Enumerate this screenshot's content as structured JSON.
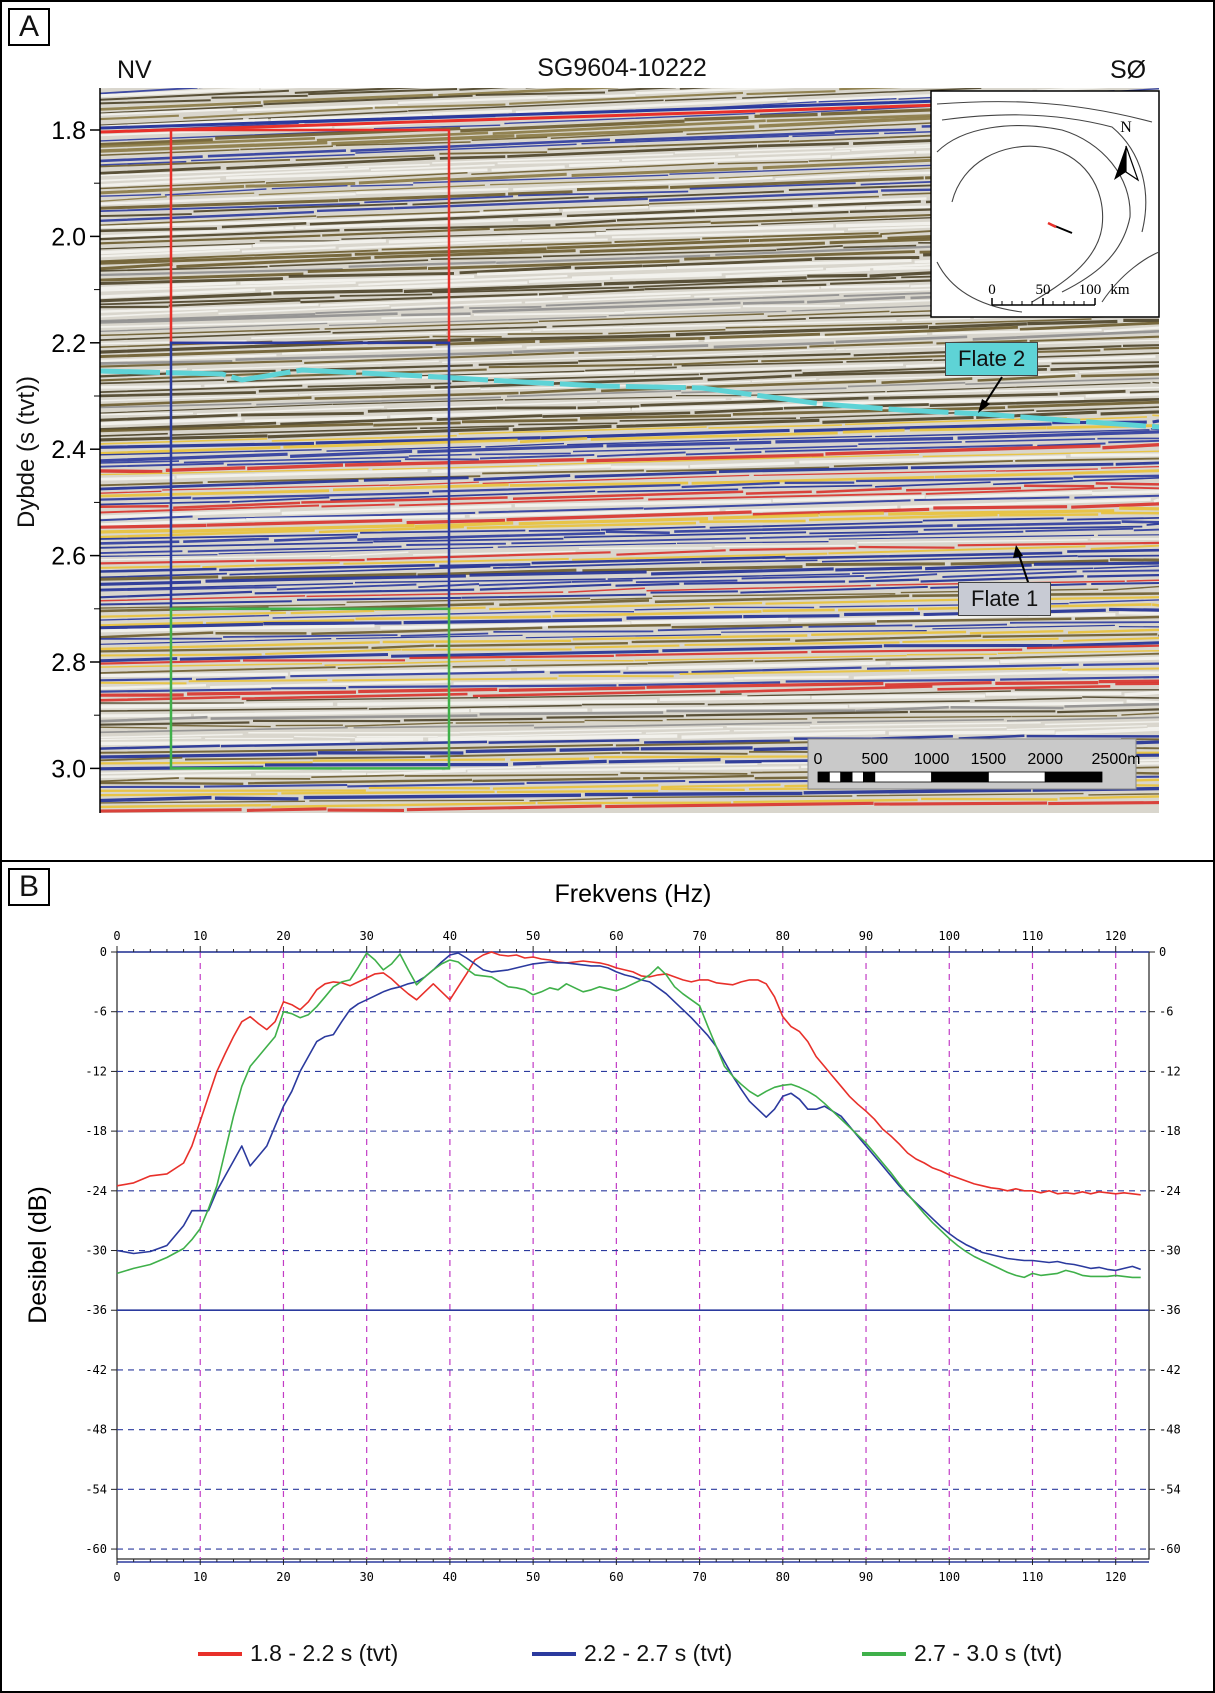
{
  "panel_a": {
    "letter": "A",
    "title": "SG9604-10222",
    "left_label": "NV",
    "right_label": "SØ",
    "ylabel": "Dybde (s (tvt))",
    "yticks": [
      "1.8",
      "2.0",
      "2.2",
      "2.4",
      "2.6",
      "2.8",
      "3.0"
    ],
    "boxes": [
      {
        "name": "red-window",
        "color": "#e8302a",
        "range": [
          1.8,
          2.2
        ]
      },
      {
        "name": "blue-window",
        "color": "#2b3a9e",
        "range": [
          2.2,
          2.7
        ]
      },
      {
        "name": "green-window",
        "color": "#3fb04a",
        "range": [
          2.7,
          3.0
        ]
      }
    ],
    "annotations": {
      "flate2": {
        "text": "Flate 2",
        "bg": "#5ed3d6"
      },
      "flate1": {
        "text": "Flate 1",
        "bg": "#c8cbd4"
      }
    },
    "inset_map": {
      "north": "N",
      "scale_ticks": [
        "0",
        "50",
        "100"
      ],
      "scale_unit": "km"
    },
    "scalebar": {
      "ticks": [
        "0",
        "500",
        "1000",
        "1500",
        "2000",
        "2500m"
      ]
    }
  },
  "panel_b": {
    "letter": "B"
  },
  "chart_data": {
    "type": "line",
    "xlabel": "Frekvens (Hz)",
    "ylabel": "Desibel (dB)",
    "xlim": [
      0,
      124
    ],
    "ylim": [
      -61,
      0
    ],
    "xticks": [
      0,
      10,
      20,
      30,
      40,
      50,
      60,
      70,
      80,
      90,
      100,
      110,
      120
    ],
    "yticks": [
      0,
      -6,
      -12,
      -18,
      -24,
      -30,
      -36,
      -42,
      -48,
      -54,
      -60
    ],
    "grid": true,
    "legend_position": "bottom",
    "series": [
      {
        "name": "1.8 - 2.2 s (tvt)",
        "color": "#e8302a",
        "x": [
          0,
          2,
          4,
          6,
          8,
          9,
          10,
          11,
          12,
          13,
          14,
          15,
          16,
          17,
          18,
          19,
          20,
          21,
          22,
          23,
          24,
          25,
          26,
          27,
          28,
          29,
          30,
          31,
          32,
          33,
          34,
          35,
          36,
          37,
          38,
          39,
          40,
          41,
          42,
          43,
          44,
          45,
          46,
          47,
          48,
          49,
          50,
          51,
          52,
          53,
          54,
          55,
          56,
          57,
          58,
          59,
          60,
          61,
          62,
          63,
          64,
          65,
          66,
          67,
          68,
          69,
          70,
          71,
          72,
          73,
          74,
          75,
          76,
          77,
          78,
          79,
          80,
          81,
          82,
          83,
          84,
          85,
          86,
          87,
          88,
          89,
          90,
          91,
          92,
          93,
          94,
          95,
          96,
          97,
          98,
          99,
          100,
          101,
          102,
          103,
          104,
          105,
          106,
          107,
          108,
          109,
          110,
          111,
          112,
          113,
          114,
          115,
          116,
          117,
          118,
          119,
          120,
          121,
          122,
          123
        ],
        "y": [
          -23.5,
          -23.2,
          -22.5,
          -22.3,
          -21.2,
          -19.5,
          -17.0,
          -14.5,
          -12.0,
          -10.2,
          -8.5,
          -7.0,
          -6.5,
          -7.2,
          -7.8,
          -7.0,
          -5.0,
          -5.3,
          -5.8,
          -5.0,
          -3.8,
          -3.2,
          -3.0,
          -3.1,
          -3.4,
          -3.0,
          -2.6,
          -2.2,
          -2.1,
          -2.7,
          -3.5,
          -4.2,
          -4.8,
          -4.0,
          -3.2,
          -4.0,
          -4.8,
          -3.5,
          -2.2,
          -0.8,
          -0.3,
          0.0,
          -0.3,
          -0.4,
          -0.3,
          -0.6,
          -0.5,
          -0.7,
          -0.8,
          -1.0,
          -1.1,
          -1.0,
          -0.9,
          -1.0,
          -1.1,
          -1.3,
          -1.6,
          -1.8,
          -2.0,
          -2.4,
          -2.5,
          -2.3,
          -2.2,
          -2.5,
          -2.8,
          -3.0,
          -2.8,
          -2.8,
          -3.1,
          -3.2,
          -3.3,
          -3.0,
          -2.8,
          -2.8,
          -3.2,
          -4.5,
          -6.5,
          -7.5,
          -8.0,
          -9.0,
          -10.5,
          -11.5,
          -12.5,
          -13.5,
          -14.5,
          -15.3,
          -16.0,
          -16.8,
          -17.8,
          -18.5,
          -19.3,
          -20.2,
          -20.8,
          -21.2,
          -21.7,
          -22.0,
          -22.4,
          -22.7,
          -23.0,
          -23.3,
          -23.5,
          -23.7,
          -23.8,
          -24.0,
          -23.8,
          -24.0,
          -24.0,
          -24.2,
          -24.0,
          -24.3,
          -24.2,
          -24.3,
          -24.1,
          -24.3,
          -24.1,
          -24.2,
          -24.3,
          -24.2,
          -24.3,
          -24.4
        ]
      },
      {
        "name": "2.2 - 2.7 s (tvt)",
        "color": "#2b3a9e",
        "x": [
          0,
          2,
          4,
          6,
          8,
          9,
          10,
          11,
          12,
          13,
          14,
          15,
          16,
          17,
          18,
          19,
          20,
          21,
          22,
          23,
          24,
          25,
          26,
          27,
          28,
          29,
          30,
          31,
          32,
          33,
          34,
          35,
          36,
          37,
          38,
          39,
          40,
          41,
          42,
          43,
          44,
          45,
          46,
          47,
          48,
          49,
          50,
          51,
          52,
          53,
          54,
          55,
          56,
          57,
          58,
          59,
          60,
          61,
          62,
          63,
          64,
          65,
          66,
          67,
          68,
          69,
          70,
          71,
          72,
          73,
          74,
          75,
          76,
          77,
          78,
          79,
          80,
          81,
          82,
          83,
          84,
          85,
          86,
          87,
          88,
          89,
          90,
          91,
          92,
          93,
          94,
          95,
          96,
          97,
          98,
          99,
          100,
          101,
          102,
          103,
          104,
          105,
          106,
          107,
          108,
          109,
          110,
          111,
          112,
          113,
          114,
          115,
          116,
          117,
          118,
          119,
          120,
          121,
          122,
          123
        ],
        "y": [
          -30.0,
          -30.3,
          -30.1,
          -29.5,
          -27.5,
          -26.0,
          -26.0,
          -26.0,
          -24.0,
          -22.5,
          -21.0,
          -19.5,
          -21.5,
          -20.5,
          -19.5,
          -17.5,
          -15.5,
          -14.0,
          -12.0,
          -10.5,
          -9.0,
          -8.5,
          -8.3,
          -7.0,
          -5.8,
          -5.2,
          -4.8,
          -4.4,
          -4.0,
          -3.7,
          -3.5,
          -3.2,
          -3.0,
          -2.5,
          -1.8,
          -1.0,
          -0.3,
          -0.1,
          -0.6,
          -1.2,
          -1.8,
          -2.0,
          -1.9,
          -1.8,
          -1.6,
          -1.4,
          -1.2,
          -1.1,
          -1.0,
          -1.1,
          -1.1,
          -1.2,
          -1.3,
          -1.4,
          -1.4,
          -1.6,
          -2.0,
          -2.3,
          -2.5,
          -2.8,
          -3.0,
          -3.6,
          -4.2,
          -5.0,
          -5.8,
          -6.6,
          -7.5,
          -8.4,
          -9.5,
          -11.0,
          -12.5,
          -13.8,
          -15.0,
          -15.8,
          -16.6,
          -15.8,
          -14.5,
          -14.2,
          -14.8,
          -15.8,
          -15.8,
          -15.5,
          -16.0,
          -16.5,
          -17.5,
          -18.5,
          -19.5,
          -20.5,
          -21.5,
          -22.5,
          -23.5,
          -24.4,
          -25.2,
          -26.0,
          -26.8,
          -27.6,
          -28.3,
          -28.9,
          -29.4,
          -29.8,
          -30.2,
          -30.4,
          -30.6,
          -30.8,
          -30.9,
          -31.0,
          -31.0,
          -31.1,
          -31.2,
          -31.1,
          -31.3,
          -31.4,
          -31.6,
          -31.8,
          -31.7,
          -31.9,
          -32.0,
          -31.8,
          -31.6,
          -31.9
        ]
      },
      {
        "name": "2.7 - 3.0 s (tvt)",
        "color": "#3fb04a",
        "x": [
          0,
          2,
          4,
          6,
          8,
          9,
          10,
          11,
          12,
          13,
          14,
          15,
          16,
          17,
          18,
          19,
          20,
          21,
          22,
          23,
          24,
          25,
          26,
          27,
          28,
          29,
          30,
          31,
          32,
          33,
          34,
          35,
          36,
          37,
          38,
          39,
          40,
          41,
          42,
          43,
          44,
          45,
          46,
          47,
          48,
          49,
          50,
          51,
          52,
          53,
          54,
          55,
          56,
          57,
          58,
          59,
          60,
          61,
          62,
          63,
          64,
          65,
          66,
          67,
          68,
          69,
          70,
          71,
          72,
          73,
          74,
          75,
          76,
          77,
          78,
          79,
          80,
          81,
          82,
          83,
          84,
          85,
          86,
          87,
          88,
          89,
          90,
          91,
          92,
          93,
          94,
          95,
          96,
          97,
          98,
          99,
          100,
          101,
          102,
          103,
          104,
          105,
          106,
          107,
          108,
          109,
          110,
          111,
          112,
          113,
          114,
          115,
          116,
          117,
          118,
          119,
          120,
          121,
          122,
          123
        ],
        "y": [
          -32.3,
          -31.8,
          -31.4,
          -30.7,
          -29.8,
          -28.9,
          -27.8,
          -25.8,
          -23.5,
          -20.0,
          -16.5,
          -13.5,
          -11.5,
          -10.5,
          -9.5,
          -8.5,
          -6.0,
          -6.2,
          -6.6,
          -6.3,
          -5.5,
          -4.5,
          -3.5,
          -3.0,
          -2.8,
          -1.5,
          -0.1,
          -0.8,
          -1.8,
          -1.2,
          -0.2,
          -1.8,
          -3.3,
          -2.5,
          -1.8,
          -1.2,
          -0.8,
          -1.0,
          -1.7,
          -2.3,
          -2.4,
          -2.5,
          -3.0,
          -3.5,
          -3.6,
          -3.8,
          -4.3,
          -4.0,
          -3.6,
          -3.8,
          -3.2,
          -3.6,
          -4.0,
          -3.8,
          -3.5,
          -3.7,
          -3.9,
          -3.6,
          -3.2,
          -2.8,
          -2.3,
          -1.5,
          -2.3,
          -3.5,
          -4.2,
          -4.8,
          -5.4,
          -7.5,
          -9.5,
          -11.5,
          -12.5,
          -13.3,
          -14.0,
          -14.5,
          -14.0,
          -13.6,
          -13.4,
          -13.3,
          -13.6,
          -14.0,
          -14.5,
          -15.2,
          -16.0,
          -16.8,
          -17.6,
          -18.4,
          -19.2,
          -20.2,
          -21.2,
          -22.2,
          -23.3,
          -24.3,
          -25.3,
          -26.3,
          -27.2,
          -28.0,
          -28.8,
          -29.5,
          -30.1,
          -30.6,
          -31.0,
          -31.4,
          -31.8,
          -32.2,
          -32.5,
          -32.7,
          -32.3,
          -32.5,
          -32.4,
          -32.3,
          -32.0,
          -32.2,
          -32.5,
          -32.6,
          -32.6,
          -32.6,
          -32.5,
          -32.6,
          -32.7,
          -32.7
        ]
      }
    ]
  }
}
